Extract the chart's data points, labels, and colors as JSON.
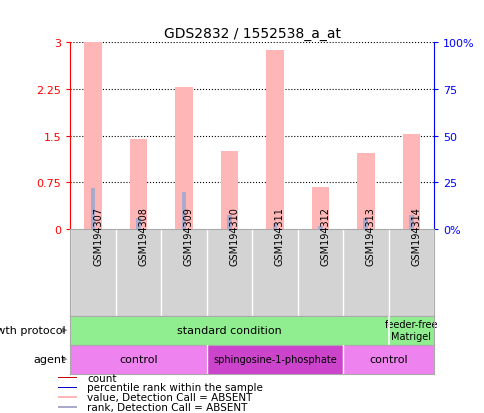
{
  "title": "GDS2832 / 1552538_a_at",
  "samples": [
    "GSM194307",
    "GSM194308",
    "GSM194309",
    "GSM194310",
    "GSM194311",
    "GSM194312",
    "GSM194313",
    "GSM194314"
  ],
  "pink_values": [
    3.0,
    1.45,
    2.28,
    1.25,
    2.88,
    0.68,
    1.22,
    1.52
  ],
  "blue_values": [
    0.65,
    0.18,
    0.6,
    0.22,
    0.1,
    0.04,
    0.18,
    0.22
  ],
  "ylim_left": [
    0,
    3.0
  ],
  "ylim_right": [
    0,
    100
  ],
  "yticks_left": [
    0,
    0.75,
    1.5,
    2.25,
    3.0
  ],
  "ytick_labels_left": [
    "0",
    "0.75",
    "1.5",
    "2.25",
    "3"
  ],
  "yticks_right": [
    0,
    25,
    50,
    75,
    100
  ],
  "ytick_labels_right": [
    "0%",
    "25",
    "50",
    "75",
    "100%"
  ],
  "bar_width": 0.38,
  "pink_color": "#FFB6B6",
  "blue_color": "#AAAACC",
  "green_color": "#90EE90",
  "pink_light": "#EE82EE",
  "pink_dark": "#CC44CC",
  "gray_label": "#888888",
  "legend_items": [
    {
      "color": "#CC0000",
      "label": "count"
    },
    {
      "color": "#0000CC",
      "label": "percentile rank within the sample"
    },
    {
      "color": "#FFB6B6",
      "label": "value, Detection Call = ABSENT"
    },
    {
      "color": "#AAAACC",
      "label": "rank, Detection Call = ABSENT"
    }
  ]
}
